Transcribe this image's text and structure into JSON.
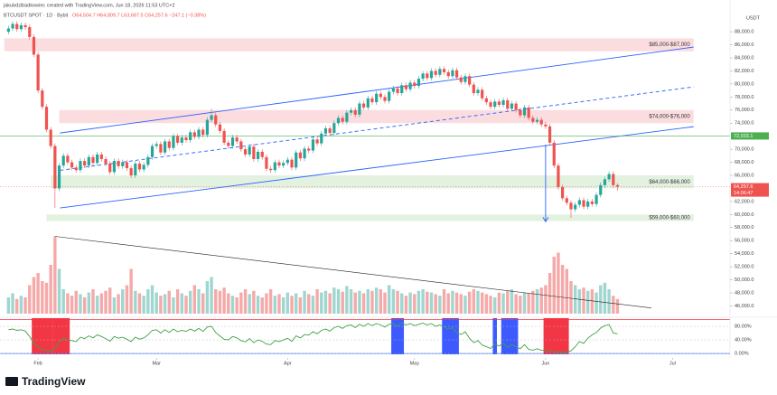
{
  "chart_data": {
    "type": "candlestick",
    "author_line": "jakubdzibadkowiec created with TradingView.com, Jun 18, 2026 11:53 UTC+2",
    "symbol": "BTCUSDT SPOT · 1D · Bybit",
    "ohlc_text": "O64,504.7 H64,809.7 L63,687.5 C64,257.6 −247.1 (−0.38%)",
    "currency": "USDT",
    "brand": "TradingView",
    "up_color": "#26a69a",
    "down_color": "#ef5350",
    "xlim": [
      -2,
      170.6
    ],
    "xticks": [
      {
        "value": 7,
        "label": "Feb"
      },
      {
        "value": 35,
        "label": "Mar"
      },
      {
        "value": 66,
        "label": "Apr"
      },
      {
        "value": 96,
        "label": "May"
      },
      {
        "value": 127,
        "label": "Jun"
      },
      {
        "value": 157,
        "label": "Jul"
      }
    ],
    "ylim": [
      44400,
      91200
    ],
    "yticks": [
      {
        "value": 88000,
        "label": "88,000.0"
      },
      {
        "value": 86000,
        "label": "86,000.0"
      },
      {
        "value": 84000,
        "label": "84,000.0"
      },
      {
        "value": 82000,
        "label": "82,000.0"
      },
      {
        "value": 80000,
        "label": "80,000.0"
      },
      {
        "value": 78000,
        "label": "78,000.0"
      },
      {
        "value": 76000,
        "label": "76,000.0"
      },
      {
        "value": 74000,
        "label": "74,000.0"
      },
      {
        "value": 70000,
        "label": "70,000.0"
      },
      {
        "value": 68000,
        "label": "68,000.0"
      },
      {
        "value": 66000,
        "label": "66,000.0"
      },
      {
        "value": 62000,
        "label": "62,000.0"
      },
      {
        "value": 60000,
        "label": "60,000.0"
      },
      {
        "value": 58000,
        "label": "58,000.0"
      },
      {
        "value": 56000,
        "label": "56,000.0"
      },
      {
        "value": 54000,
        "label": "54,000.0"
      },
      {
        "value": 52000,
        "label": "52,000.0"
      },
      {
        "value": 50000,
        "label": "50,000.0"
      },
      {
        "value": 48000,
        "label": "48,000.0"
      },
      {
        "value": 46000,
        "label": "46,000.0"
      }
    ],
    "open": [
      88000,
      88500,
      89200,
      88400,
      89000,
      88700,
      87200,
      84500,
      79000,
      76500,
      73000,
      70500,
      64000,
      67500,
      69000,
      68000,
      67200,
      66800,
      68200,
      67500,
      68800,
      67900,
      69200,
      68500,
      67800,
      66500,
      68200,
      67400,
      68000,
      67100,
      66000,
      67800,
      66900,
      67600,
      68800,
      70500,
      70800,
      69500,
      71200,
      70200,
      72000,
      71000,
      71800,
      71400,
      72600,
      71900,
      73000,
      72200,
      74500,
      75200,
      73800,
      72800,
      71000,
      70500,
      71800,
      71200,
      70000,
      69200,
      70400,
      68500,
      69600,
      68800,
      67000,
      66800,
      68000,
      67500,
      67900,
      68400,
      67200,
      69500,
      68600,
      70100,
      69800,
      71500,
      70900,
      72400,
      73200,
      72500,
      74000,
      74800,
      74200,
      75600,
      76000,
      75300,
      77000,
      76400,
      77800,
      77200,
      78500,
      78000,
      77400,
      78800,
      79300,
      78600,
      79800,
      79200,
      80200,
      79700,
      80800,
      81600,
      80900,
      82000,
      81400,
      82300,
      81800,
      81200,
      82100,
      81000,
      80300,
      81200,
      79900,
      78600,
      79100,
      77800,
      77200,
      76500,
      77300,
      76800,
      77500,
      76200,
      77000,
      76000,
      75200,
      76400,
      74800,
      74200,
      74500,
      73800,
      73500,
      71000,
      67500,
      64200,
      62500,
      61800,
      60800,
      61500,
      62200,
      61200,
      62000,
      61600,
      63000,
      64500,
      65400,
      66200,
      64504.7
    ],
    "high": [
      88900,
      89600,
      89600,
      89400,
      89400,
      89100,
      87600,
      84900,
      79400,
      76900,
      73400,
      70900,
      67900,
      69400,
      69400,
      68400,
      67600,
      68600,
      68600,
      69200,
      69200,
      69600,
      69600,
      68900,
      68200,
      68600,
      68600,
      68400,
      68400,
      67500,
      68200,
      68200,
      68000,
      69200,
      70900,
      71200,
      71200,
      71600,
      71600,
      72400,
      72400,
      72200,
      72200,
      73000,
      73000,
      73400,
      73400,
      74900,
      76200,
      75600,
      74200,
      73200,
      71400,
      72200,
      72200,
      71600,
      70400,
      70800,
      70800,
      70000,
      70000,
      69200,
      67400,
      68400,
      68400,
      68300,
      68800,
      68800,
      69900,
      69900,
      70500,
      70500,
      71900,
      71900,
      72800,
      73600,
      73600,
      74400,
      75200,
      75200,
      76000,
      76400,
      76400,
      77400,
      77400,
      78200,
      78200,
      78900,
      78900,
      78400,
      79200,
      79700,
      79700,
      80200,
      80200,
      80600,
      80600,
      81200,
      82000,
      82000,
      82400,
      82400,
      82700,
      82700,
      82200,
      82500,
      82500,
      81400,
      81600,
      81600,
      80300,
      79500,
      79500,
      78200,
      77600,
      77700,
      77700,
      77900,
      77900,
      77400,
      77400,
      76400,
      76800,
      76800,
      75200,
      74900,
      74900,
      74200,
      73900,
      71400,
      67900,
      64600,
      62900,
      62200,
      61900,
      62600,
      62600,
      62400,
      62400,
      63400,
      64900,
      65800,
      66600,
      66600,
      64809.7
    ],
    "low": [
      87600,
      88100,
      88000,
      88000,
      88300,
      86800,
      84100,
      78600,
      76100,
      72600,
      70100,
      61000,
      63600,
      67100,
      67600,
      66800,
      66400,
      66400,
      67100,
      67100,
      67500,
      67500,
      68100,
      67400,
      66100,
      66100,
      67000,
      67000,
      66700,
      65600,
      65600,
      66500,
      66500,
      67200,
      68400,
      70100,
      69100,
      69100,
      69800,
      69800,
      70600,
      70600,
      71000,
      71000,
      71500,
      71500,
      71800,
      71800,
      74100,
      73400,
      72400,
      70600,
      70100,
      70100,
      70800,
      69600,
      68800,
      68800,
      68100,
      68100,
      68400,
      66600,
      66400,
      66400,
      67100,
      67100,
      67500,
      66800,
      66800,
      68200,
      68200,
      69400,
      69400,
      70500,
      70500,
      72000,
      72100,
      72100,
      73600,
      73800,
      73800,
      75200,
      74900,
      74900,
      76000,
      76000,
      76800,
      76800,
      77600,
      77000,
      77000,
      78400,
      78200,
      78200,
      78800,
      78800,
      79300,
      79300,
      80400,
      80500,
      80500,
      81000,
      81000,
      81400,
      80800,
      80800,
      80600,
      79900,
      79900,
      79500,
      78200,
      78200,
      77400,
      76800,
      76100,
      76100,
      76400,
      76400,
      75800,
      75800,
      75600,
      74800,
      74800,
      74400,
      73800,
      73800,
      73400,
      73100,
      70600,
      67100,
      63800,
      62100,
      61400,
      59500,
      60400,
      61100,
      60800,
      60800,
      61200,
      61200,
      62600,
      64100,
      65000,
      64100,
      63687.5
    ],
    "close": [
      88500,
      89200,
      88400,
      89000,
      88700,
      87200,
      84500,
      79000,
      76500,
      73000,
      70500,
      64000,
      67500,
      69000,
      68000,
      67200,
      66800,
      68200,
      67500,
      68800,
      67900,
      69200,
      68500,
      67800,
      66500,
      68200,
      67400,
      68000,
      67100,
      66000,
      67800,
      66900,
      67600,
      68800,
      70500,
      70800,
      69500,
      71200,
      70200,
      72000,
      71000,
      71800,
      71400,
      72600,
      71900,
      73000,
      72200,
      74500,
      75200,
      73800,
      72800,
      71000,
      70500,
      71800,
      71200,
      70000,
      69200,
      70400,
      68500,
      69600,
      68800,
      67000,
      66800,
      68000,
      67500,
      67900,
      68400,
      67200,
      69500,
      68600,
      70100,
      69800,
      71500,
      70900,
      72400,
      73200,
      72500,
      74000,
      74800,
      74200,
      75600,
      76000,
      75300,
      77000,
      76400,
      77800,
      77200,
      78500,
      78000,
      77400,
      78800,
      79300,
      78600,
      79800,
      79200,
      80200,
      79700,
      80800,
      81600,
      80900,
      82000,
      81400,
      82300,
      81800,
      81200,
      82100,
      81000,
      80300,
      81200,
      79900,
      78600,
      79100,
      77800,
      77200,
      76500,
      77300,
      76800,
      77500,
      76200,
      77000,
      76000,
      75200,
      76400,
      74800,
      74200,
      74500,
      73800,
      73500,
      71000,
      67500,
      64200,
      62500,
      61800,
      60800,
      61500,
      62200,
      61200,
      62000,
      61600,
      63000,
      64500,
      65400,
      66200,
      64500,
      64257.6
    ],
    "zones": [
      {
        "low": 85000,
        "high": 87000,
        "start": -1,
        "end": 162,
        "label": "$85,000-$87,000",
        "color": "#fbdde0"
      },
      {
        "low": 74000,
        "high": 76000,
        "start": 12,
        "end": 162,
        "label": "$74,000-$76,000",
        "color": "#fbdde0"
      },
      {
        "low": 64000,
        "high": 66000,
        "start": 10,
        "end": 162,
        "label": "$64,000-$66,000",
        "color": "#e3f1e0"
      },
      {
        "low": 59000,
        "high": 60000,
        "start": 9,
        "end": 162,
        "label": "$59,000-$60,000",
        "color": "#e3f1e0"
      }
    ],
    "trendlines": [
      {
        "points": [
          [
            12.2,
            61000
          ],
          [
            162,
            73460
          ]
        ],
        "color": "#2962ff",
        "dashed": false
      },
      {
        "points": [
          [
            12.2,
            72490
          ],
          [
            162,
            85650
          ]
        ],
        "color": "#2962ff",
        "dashed": false
      },
      {
        "points": [
          [
            12.2,
            66770
          ],
          [
            162,
            79550
          ]
        ],
        "color": "#2962ff",
        "dashed": true
      }
    ],
    "arrow": {
      "points": [
        [
          127,
          70700
        ],
        [
          127,
          58900
        ]
      ],
      "color": "#2962ff"
    },
    "price_line": {
      "value": 72033.1,
      "label": "72,033.1",
      "color": "#4caf50"
    },
    "last_price": {
      "value": 64257.6,
      "label": "64,257.6",
      "countdown": "14:06:47",
      "color": "#ef5350"
    },
    "volume": {
      "ylim": [
        0,
        100
      ],
      "values": [
        20,
        25,
        18,
        22,
        20,
        35,
        45,
        50,
        40,
        38,
        60,
        95,
        55,
        30,
        25,
        22,
        28,
        24,
        20,
        26,
        30,
        22,
        25,
        28,
        32,
        20,
        24,
        30,
        35,
        55,
        28,
        25,
        22,
        30,
        35,
        26,
        22,
        24,
        28,
        20,
        30,
        25,
        22,
        28,
        35,
        30,
        25,
        40,
        45,
        30,
        28,
        32,
        25,
        22,
        20,
        26,
        30,
        24,
        28,
        22,
        20,
        25,
        30,
        22,
        24,
        20,
        26,
        22,
        25,
        20,
        28,
        24,
        22,
        30,
        26,
        28,
        25,
        32,
        30,
        27,
        34,
        30,
        26,
        28,
        25,
        30,
        28,
        32,
        30,
        26,
        35,
        30,
        28,
        25,
        22,
        26,
        24,
        28,
        30,
        27,
        26,
        24,
        22,
        30,
        25,
        28,
        26,
        24,
        22,
        27,
        30,
        28,
        26,
        24,
        22,
        20,
        26,
        25,
        28,
        30,
        24,
        22,
        26,
        25,
        28,
        30,
        32,
        35,
        50,
        70,
        75,
        60,
        55,
        40,
        35,
        30,
        32,
        28,
        30,
        26,
        35,
        38,
        30,
        22,
        18
      ],
      "up_color": "#9fd6cf",
      "down_color": "#f5a9a9",
      "trendline": {
        "points": [
          [
            11,
            95
          ],
          [
            152,
            7
          ]
        ],
        "color": "#222"
      }
    },
    "indicator": {
      "ylim": [
        -13,
        104
      ],
      "yticks": [
        {
          "value": 80,
          "label": "80.00%"
        },
        {
          "value": 40,
          "label": "40.00%"
        },
        {
          "value": 0,
          "label": "0.00%"
        }
      ],
      "levels": [
        {
          "value": 100,
          "color": "#f23645"
        },
        {
          "value": 0,
          "color": "#2962ff"
        }
      ],
      "color": "#43a047",
      "values": [
        70,
        72,
        68,
        70,
        66,
        50,
        30,
        18,
        12,
        10,
        8,
        15,
        35,
        45,
        40,
        38,
        35,
        48,
        44,
        52,
        46,
        55,
        50,
        44,
        36,
        50,
        45,
        48,
        42,
        35,
        48,
        42,
        46,
        55,
        68,
        70,
        60,
        70,
        62,
        72,
        64,
        68,
        65,
        72,
        66,
        74,
        65,
        78,
        80,
        62,
        52,
        42,
        40,
        50,
        46,
        38,
        34,
        44,
        32,
        40,
        36,
        28,
        26,
        38,
        35,
        40,
        45,
        36,
        52,
        46,
        56,
        54,
        64,
        58,
        68,
        72,
        66,
        76,
        80,
        74,
        82,
        84,
        76,
        86,
        80,
        88,
        82,
        88,
        84,
        78,
        86,
        88,
        80,
        90,
        84,
        88,
        82,
        86,
        90,
        84,
        88,
        80,
        84,
        78,
        72,
        76,
        62,
        56,
        64,
        45,
        32,
        38,
        25,
        20,
        15,
        28,
        22,
        30,
        18,
        26,
        20,
        14,
        26,
        12,
        10,
        14,
        10,
        10,
        8,
        5,
        4,
        3,
        4,
        8,
        20,
        35,
        30,
        45,
        55,
        62,
        75,
        82,
        85,
        60,
        58
      ],
      "zones": [
        {
          "start": 6,
          "end": 10,
          "color": "#f23645"
        },
        {
          "start": 11,
          "end": 14,
          "color": "#f23645"
        },
        {
          "start": 91,
          "end": 93,
          "color": "#3d5afe"
        },
        {
          "start": 103,
          "end": 106,
          "color": "#3d5afe"
        },
        {
          "start": 115,
          "end": 115,
          "color": "#3d5afe"
        },
        {
          "start": 117,
          "end": 120,
          "color": "#3d5afe"
        },
        {
          "start": 127,
          "end": 132,
          "color": "#f23645"
        }
      ]
    }
  }
}
